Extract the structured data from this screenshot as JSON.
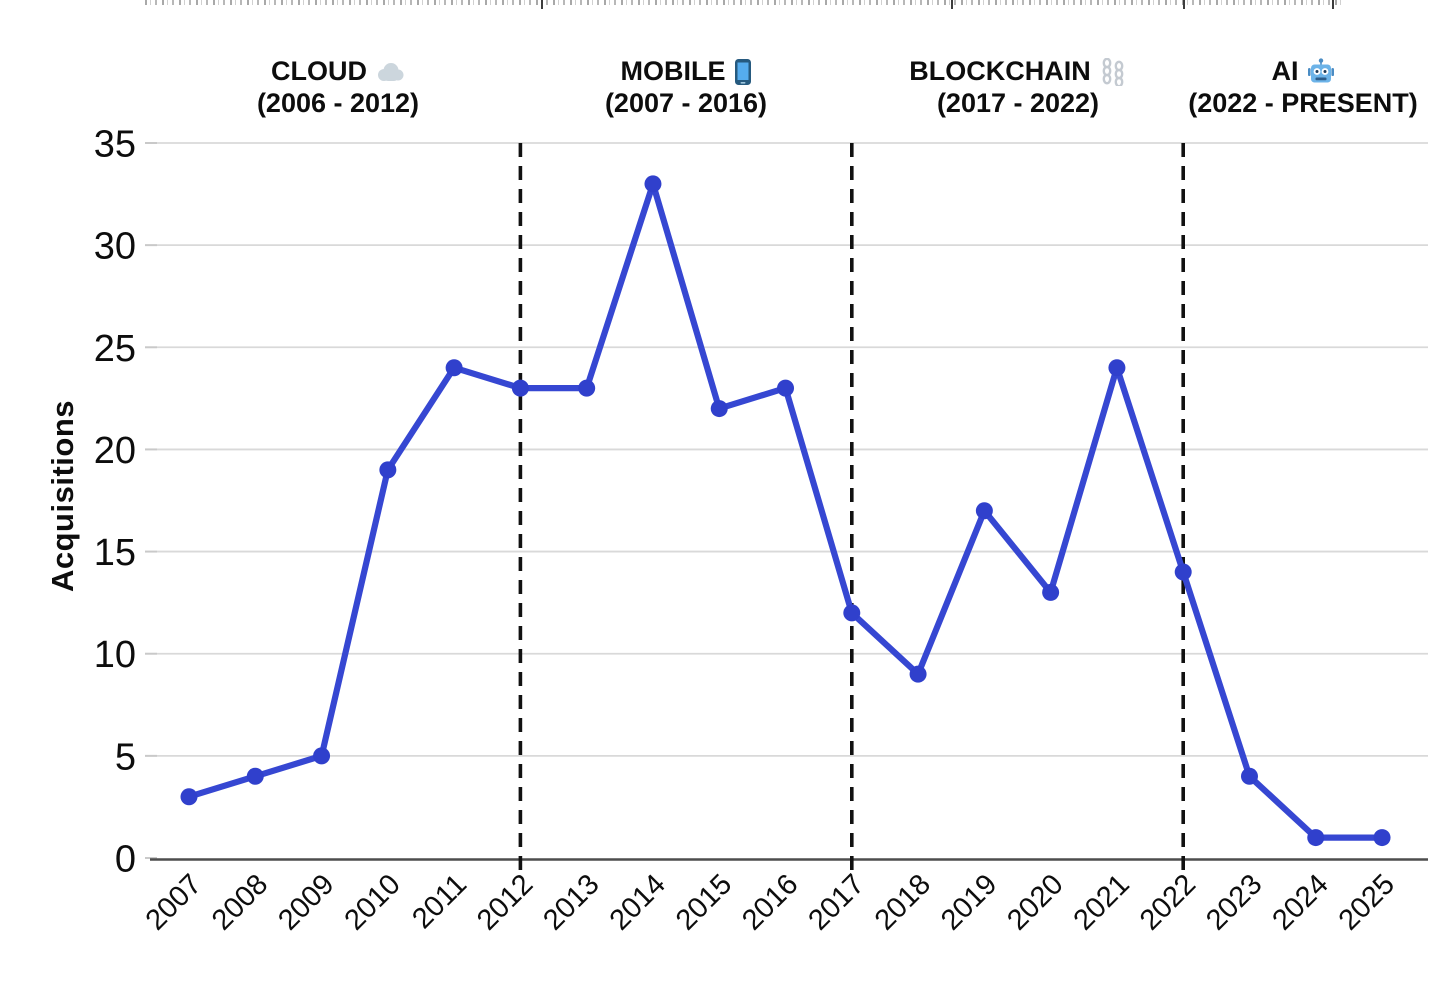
{
  "chart_data": {
    "type": "line",
    "title": "",
    "xlabel": "",
    "ylabel": "Acquisitions",
    "x": [
      2007,
      2008,
      2009,
      2010,
      2011,
      2012,
      2013,
      2014,
      2015,
      2016,
      2017,
      2018,
      2019,
      2020,
      2021,
      2022,
      2023,
      2024,
      2025
    ],
    "series": [
      {
        "name": "Acquisitions",
        "values": [
          3,
          4,
          5,
          19,
          24,
          23,
          23,
          33,
          22,
          23,
          12,
          9,
          17,
          13,
          24,
          14,
          4,
          1,
          1
        ]
      }
    ],
    "ylim": [
      0,
      35
    ],
    "yticks": [
      0,
      5,
      10,
      15,
      20,
      25,
      30,
      35
    ],
    "grid": "horizontal",
    "legend": "none",
    "era_boundaries_x": [
      2012,
      2017,
      2022
    ],
    "eras": [
      {
        "title": "CLOUD",
        "range": "(2006 - 2012)",
        "icon": "cloud-icon"
      },
      {
        "title": "MOBILE",
        "range": "(2007 - 2016)",
        "icon": "smartphone-icon"
      },
      {
        "title": "BLOCKCHAIN",
        "range": "(2017 - 2022)",
        "icon": "chains-icon"
      },
      {
        "title": "AI",
        "range": "(2022 - PRESENT)",
        "icon": "robot-icon"
      }
    ],
    "colors": {
      "line": "#3647d2",
      "marker": "#3040cc",
      "boundary": "#111111",
      "grid": "#d9d9d9",
      "axis_spine": "#4d4d4d",
      "tick": "#c9c9c9",
      "text": "#0d0d0d"
    }
  }
}
